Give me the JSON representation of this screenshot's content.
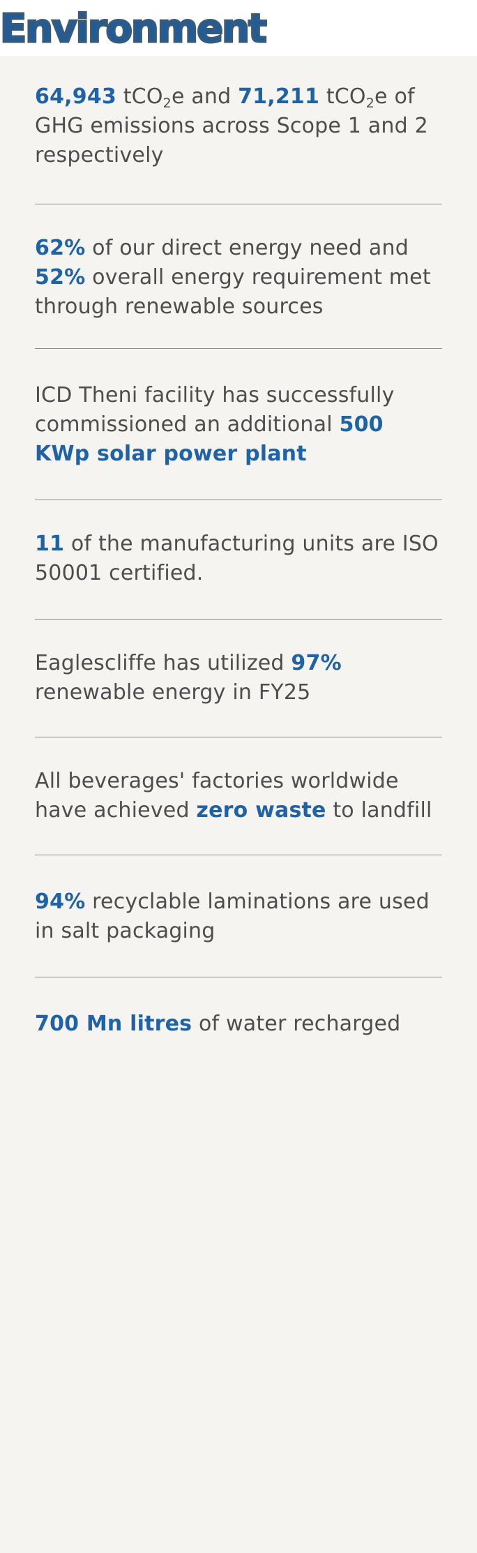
{
  "header": {
    "title": "Environment"
  },
  "items": [
    {
      "p1": "64,943",
      "p2": " tCO",
      "p3": "2",
      "p4": "e and ",
      "p5": "71,211",
      "p6": " tCO",
      "p7": "2",
      "p8": "e of GHG emissions across Scope 1 and 2 respectively"
    },
    {
      "p1": "62%",
      "p2": " of our direct energy need and ",
      "p3": "52%",
      "p4": " overall energy requirement met through renewable sources"
    },
    {
      "p1": "ICD Theni facility has successfully commissioned an additional ",
      "p2": "500 KWp solar power plant"
    },
    {
      "p1": "11",
      "p2": " of the manufacturing units are ISO 50001 certified."
    },
    {
      "p1": "Eaglescliffe has utilized ",
      "p2": "97%",
      "p3": " renewable energy in FY25"
    },
    {
      "p1": "All beverages' factories worldwide have achieved ",
      "p2": "zero waste",
      "p3": " to landfill"
    },
    {
      "p1": "94%",
      "p2": " recyclable laminations are used in salt packaging"
    },
    {
      "p1": "700 Mn litres",
      "p2": " of water recharged"
    }
  ]
}
